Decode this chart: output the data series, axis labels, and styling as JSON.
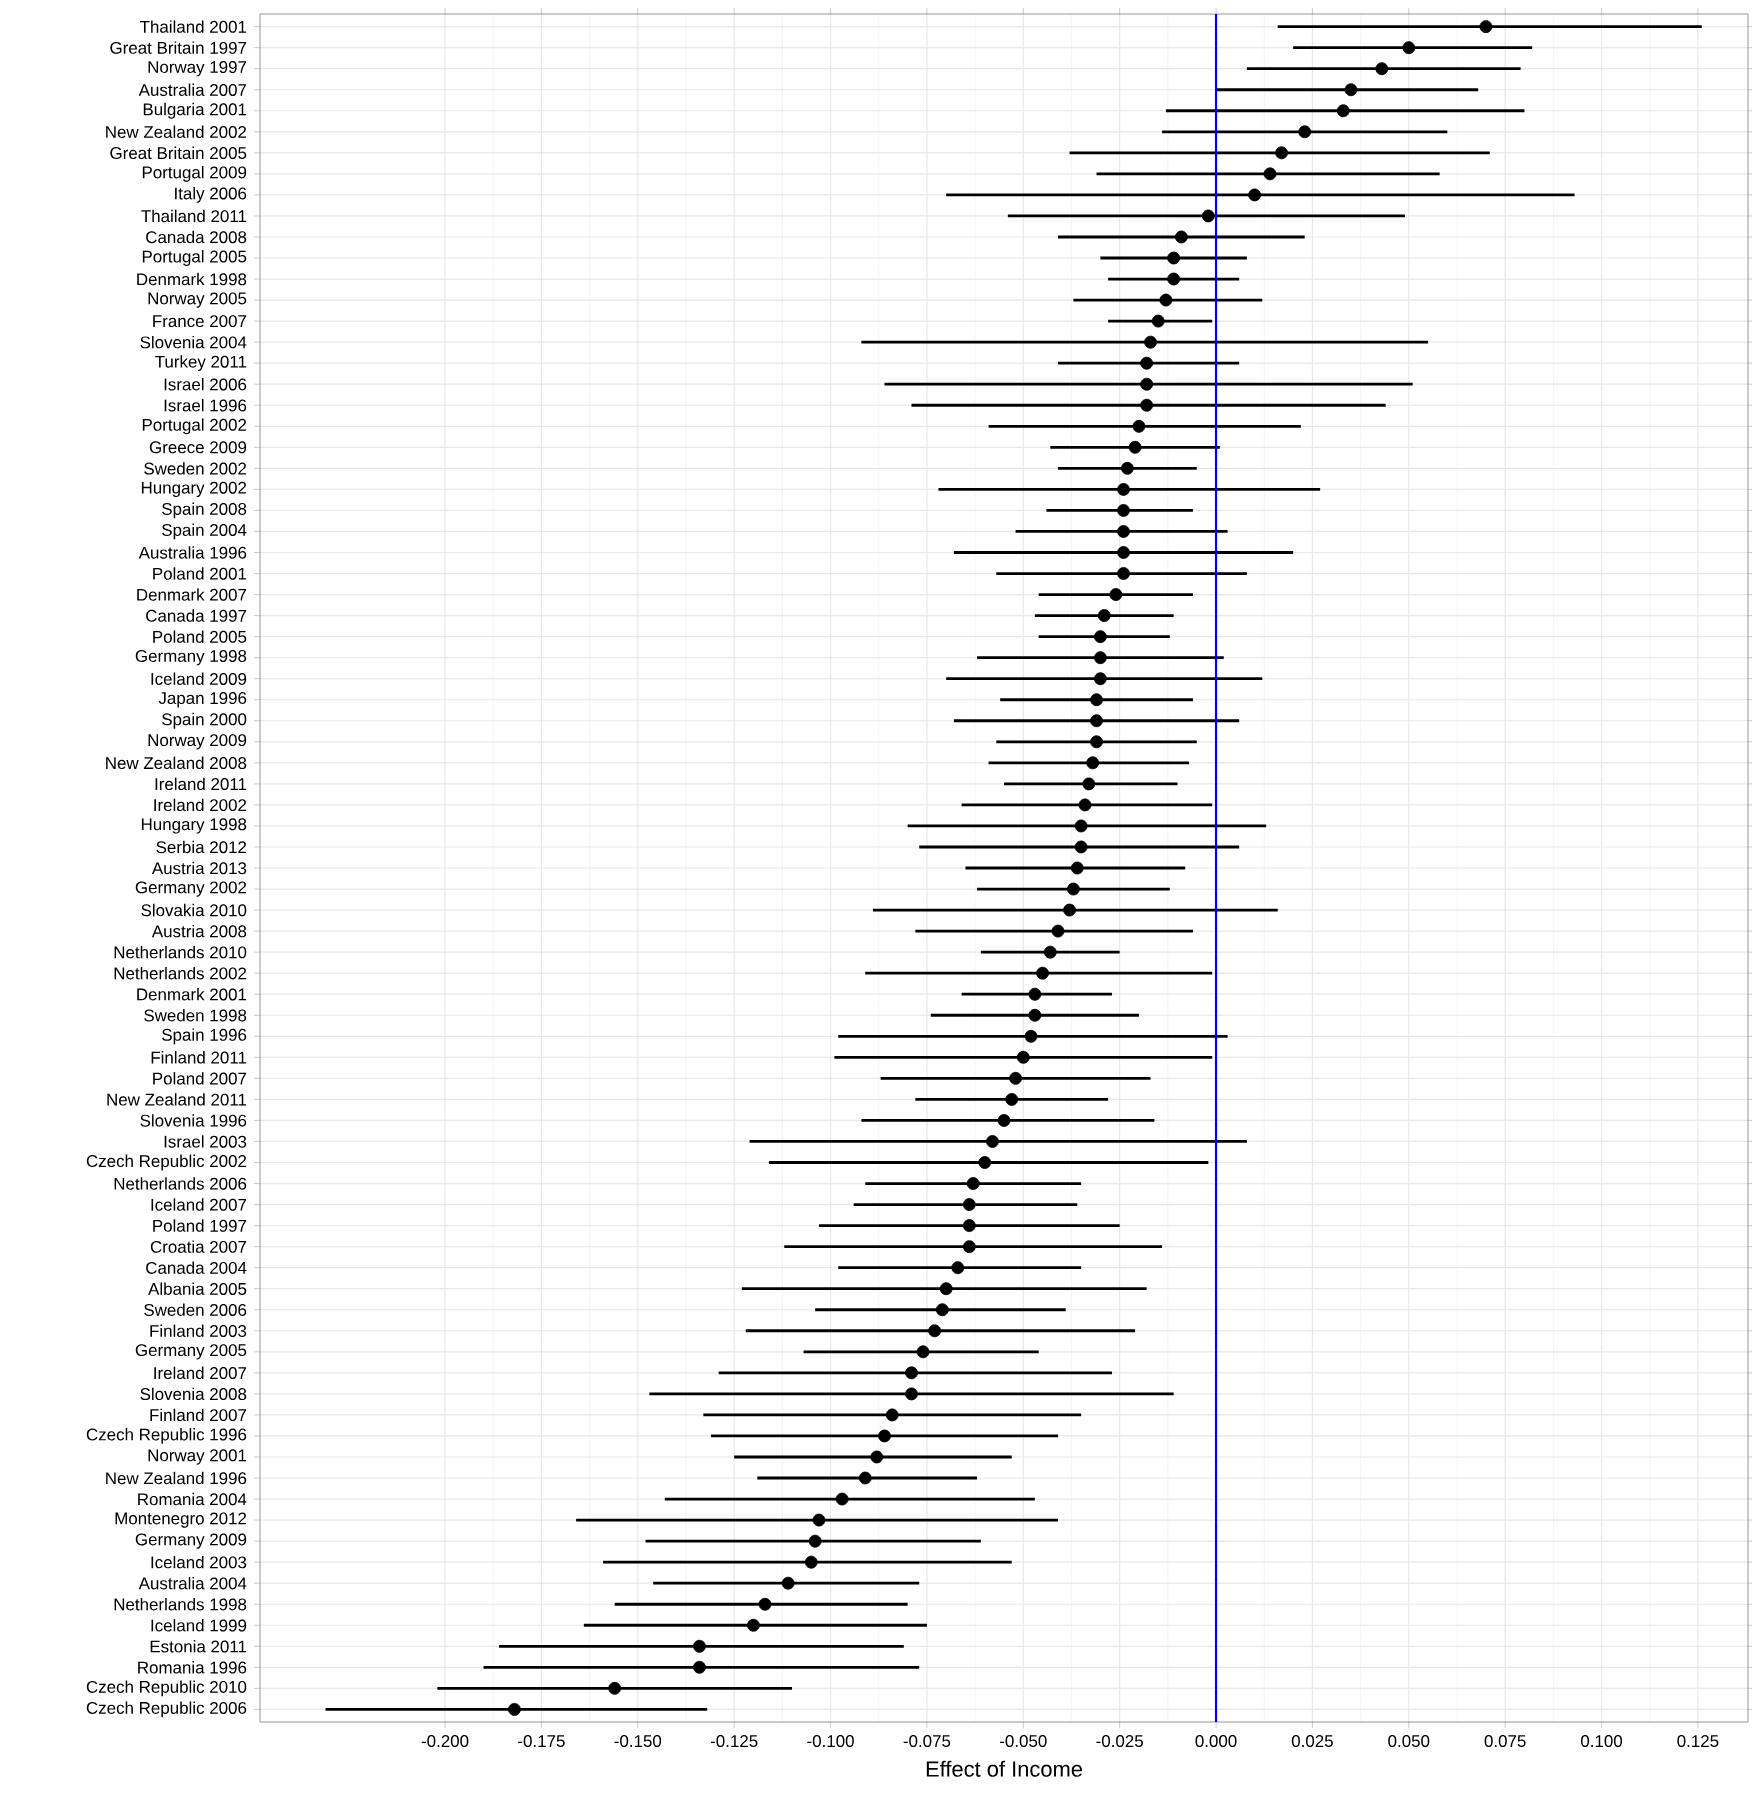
{
  "chart_data": {
    "type": "scatter",
    "orientation": "horizontal",
    "xlabel": "Effect of Income",
    "categories": [
      "Thailand 2001",
      "Great Britain 1997",
      "Norway 1997",
      "Australia 2007",
      "Bulgaria 2001",
      "New Zealand 2002",
      "Great Britain 2005",
      "Portugal 2009",
      "Italy 2006",
      "Thailand 2011",
      "Canada 2008",
      "Portugal 2005",
      "Denmark 1998",
      "Norway 2005",
      "France 2007",
      "Slovenia 2004",
      "Turkey 2011",
      "Israel 2006",
      "Israel 1996",
      "Portugal 2002",
      "Greece 2009",
      "Sweden 2002",
      "Hungary 2002",
      "Spain 2008",
      "Spain 2004",
      "Australia 1996",
      "Poland 2001",
      "Denmark 2007",
      "Canada 1997",
      "Poland 2005",
      "Germany 1998",
      "Iceland 2009",
      "Japan 1996",
      "Spain 2000",
      "Norway 2009",
      "New Zealand 2008",
      "Ireland 2011",
      "Ireland 2002",
      "Hungary 1998",
      "Serbia 2012",
      "Austria 2013",
      "Germany 2002",
      "Slovakia 2010",
      "Austria 2008",
      "Netherlands 2010",
      "Netherlands 2002",
      "Denmark 2001",
      "Sweden 1998",
      "Spain 1996",
      "Finland 2011",
      "Poland 2007",
      "New Zealand 2011",
      "Slovenia 1996",
      "Israel 2003",
      "Czech Republic 2002",
      "Netherlands 2006",
      "Iceland 2007",
      "Poland 1997",
      "Croatia 2007",
      "Canada 2004",
      "Albania 2005",
      "Sweden 2006",
      "Finland 2003",
      "Germany 2005",
      "Ireland 2007",
      "Slovenia 2008",
      "Finland 2007",
      "Czech Republic 1996",
      "Norway 2001",
      "New Zealand 1996",
      "Romania 2004",
      "Montenegro 2012",
      "Germany 2009",
      "Iceland 2003",
      "Australia 2004",
      "Netherlands 1998",
      "Iceland 1999",
      "Estonia 2011",
      "Romania 1996",
      "Czech Republic 2010",
      "Czech Republic 2006"
    ],
    "values": [
      0.07,
      0.05,
      0.043,
      0.035,
      0.033,
      0.023,
      0.017,
      0.014,
      0.01,
      -0.002,
      -0.009,
      -0.011,
      -0.011,
      -0.013,
      -0.015,
      -0.017,
      -0.018,
      -0.018,
      -0.018,
      -0.02,
      -0.021,
      -0.023,
      -0.024,
      -0.024,
      -0.024,
      -0.024,
      -0.024,
      -0.026,
      -0.029,
      -0.03,
      -0.03,
      -0.03,
      -0.031,
      -0.031,
      -0.031,
      -0.032,
      -0.033,
      -0.034,
      -0.035,
      -0.035,
      -0.036,
      -0.037,
      -0.038,
      -0.041,
      -0.043,
      -0.045,
      -0.047,
      -0.047,
      -0.048,
      -0.05,
      -0.052,
      -0.053,
      -0.055,
      -0.058,
      -0.06,
      -0.063,
      -0.064,
      -0.064,
      -0.064,
      -0.067,
      -0.07,
      -0.071,
      -0.073,
      -0.076,
      -0.079,
      -0.079,
      -0.084,
      -0.086,
      -0.088,
      -0.091,
      -0.097,
      -0.103,
      -0.104,
      -0.105,
      -0.111,
      -0.117,
      -0.12,
      -0.134,
      -0.134,
      -0.156,
      -0.182
    ],
    "errors": [
      [
        0.016,
        0.126
      ],
      [
        0.02,
        0.082
      ],
      [
        0.008,
        0.079
      ],
      [
        0.0,
        0.068
      ],
      [
        -0.013,
        0.08
      ],
      [
        -0.014,
        0.06
      ],
      [
        -0.038,
        0.071
      ],
      [
        -0.031,
        0.058
      ],
      [
        -0.07,
        0.093
      ],
      [
        -0.054,
        0.049
      ],
      [
        -0.041,
        0.023
      ],
      [
        -0.03,
        0.008
      ],
      [
        -0.028,
        0.006
      ],
      [
        -0.037,
        0.012
      ],
      [
        -0.028,
        -0.001
      ],
      [
        -0.092,
        0.055
      ],
      [
        -0.041,
        0.006
      ],
      [
        -0.086,
        0.051
      ],
      [
        -0.079,
        0.044
      ],
      [
        -0.059,
        0.022
      ],
      [
        -0.043,
        0.001
      ],
      [
        -0.041,
        -0.005
      ],
      [
        -0.072,
        0.027
      ],
      [
        -0.044,
        -0.006
      ],
      [
        -0.052,
        0.003
      ],
      [
        -0.068,
        0.02
      ],
      [
        -0.057,
        0.008
      ],
      [
        -0.046,
        -0.006
      ],
      [
        -0.047,
        -0.011
      ],
      [
        -0.046,
        -0.012
      ],
      [
        -0.062,
        0.002
      ],
      [
        -0.07,
        0.012
      ],
      [
        -0.056,
        -0.006
      ],
      [
        -0.068,
        0.006
      ],
      [
        -0.057,
        -0.005
      ],
      [
        -0.059,
        -0.007
      ],
      [
        -0.055,
        -0.01
      ],
      [
        -0.066,
        -0.001
      ],
      [
        -0.08,
        0.013
      ],
      [
        -0.077,
        0.006
      ],
      [
        -0.065,
        -0.008
      ],
      [
        -0.062,
        -0.012
      ],
      [
        -0.089,
        0.016
      ],
      [
        -0.078,
        -0.006
      ],
      [
        -0.061,
        -0.025
      ],
      [
        -0.091,
        -0.001
      ],
      [
        -0.066,
        -0.027
      ],
      [
        -0.074,
        -0.02
      ],
      [
        -0.098,
        0.003
      ],
      [
        -0.099,
        -0.001
      ],
      [
        -0.087,
        -0.017
      ],
      [
        -0.078,
        -0.028
      ],
      [
        -0.092,
        -0.016
      ],
      [
        -0.121,
        0.008
      ],
      [
        -0.116,
        -0.002
      ],
      [
        -0.091,
        -0.035
      ],
      [
        -0.094,
        -0.036
      ],
      [
        -0.103,
        -0.025
      ],
      [
        -0.112,
        -0.014
      ],
      [
        -0.098,
        -0.035
      ],
      [
        -0.123,
        -0.018
      ],
      [
        -0.104,
        -0.039
      ],
      [
        -0.122,
        -0.021
      ],
      [
        -0.107,
        -0.046
      ],
      [
        -0.129,
        -0.027
      ],
      [
        -0.147,
        -0.011
      ],
      [
        -0.133,
        -0.035
      ],
      [
        -0.131,
        -0.041
      ],
      [
        -0.125,
        -0.053
      ],
      [
        -0.119,
        -0.062
      ],
      [
        -0.143,
        -0.047
      ],
      [
        -0.166,
        -0.041
      ],
      [
        -0.148,
        -0.061
      ],
      [
        -0.159,
        -0.053
      ],
      [
        -0.146,
        -0.077
      ],
      [
        -0.156,
        -0.08
      ],
      [
        -0.164,
        -0.075
      ],
      [
        -0.186,
        -0.081
      ],
      [
        -0.19,
        -0.077
      ],
      [
        -0.202,
        -0.11
      ],
      [
        -0.231,
        -0.132
      ]
    ],
    "color": "#000000",
    "marker": "circle",
    "grid": true,
    "xlim": [
      -0.248,
      0.138
    ],
    "xticks": [
      {
        "value": -0.2,
        "label": "-0.200"
      },
      {
        "value": -0.175,
        "label": "-0.175"
      },
      {
        "value": -0.15,
        "label": "-0.150"
      },
      {
        "value": -0.125,
        "label": "-0.125"
      },
      {
        "value": -0.1,
        "label": "-0.100"
      },
      {
        "value": -0.075,
        "label": "-0.075"
      },
      {
        "value": -0.05,
        "label": "-0.050"
      },
      {
        "value": -0.025,
        "label": "-0.025"
      },
      {
        "value": 0,
        "label": "0.000"
      },
      {
        "value": 0.025,
        "label": "0.025"
      },
      {
        "value": 0.05,
        "label": "0.050"
      },
      {
        "value": 0.075,
        "label": "0.075"
      },
      {
        "value": 0.1,
        "label": "0.100"
      },
      {
        "value": 0.125,
        "label": "0.125"
      }
    ],
    "ref_lines": [
      {
        "axis": "x",
        "value": 0,
        "color": "#0000ff"
      }
    ]
  }
}
